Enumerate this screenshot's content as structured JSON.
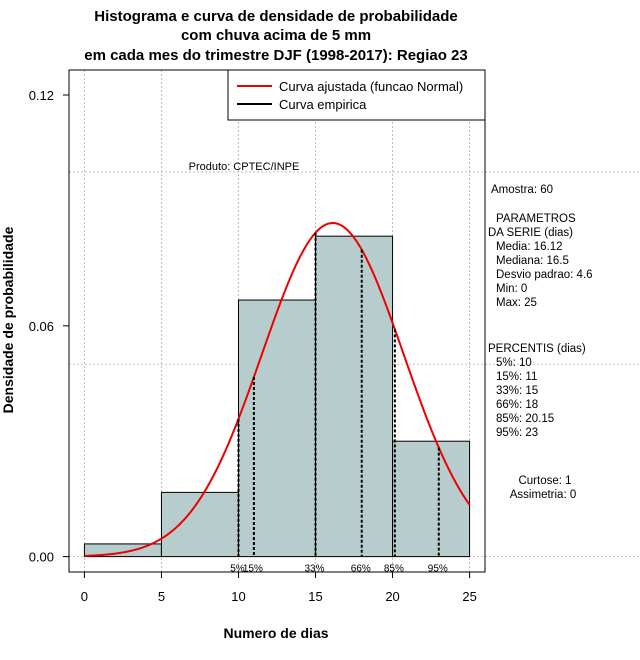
{
  "chart_data": {
    "type": "histogram",
    "title_lines": [
      "Histograma e curva de densidade de probabilidade",
      "com chuva acima de 5 mm",
      "em cada mes do trimestre DJF (1998-2017): Regiao 23"
    ],
    "xlabel": "Numero de dias",
    "ylabel": "Densidade de probabilidade",
    "xlim": [
      -1,
      26
    ],
    "ylim": [
      -0.004,
      0.1265
    ],
    "x_ticks": [
      0,
      5,
      10,
      15,
      20,
      25
    ],
    "x_tick_labels": [
      "0",
      "5",
      "10",
      "15",
      "20",
      "25"
    ],
    "y_ticks": [
      0.0,
      0.06,
      0.12
    ],
    "y_tick_labels": [
      "0.00",
      "0.06",
      "0.12"
    ],
    "grid_y": [
      0.0,
      0.05,
      0.1
    ],
    "grid_x": [
      0,
      5,
      10,
      15,
      20,
      25
    ],
    "bins": [
      {
        "left": 0,
        "right": 5,
        "density": 0.0033
      },
      {
        "left": 5,
        "right": 10,
        "density": 0.0167
      },
      {
        "left": 10,
        "right": 15,
        "density": 0.0667
      },
      {
        "left": 15,
        "right": 20,
        "density": 0.0833
      },
      {
        "left": 20,
        "right": 25,
        "density": 0.03
      }
    ],
    "normal_fit": {
      "mean": 16.12,
      "sd": 4.6,
      "from": 0,
      "to": 25,
      "color": "#ee0000"
    },
    "bar_color": "#b7cdcd",
    "percentile_lines": [
      {
        "x": 10,
        "label": "5%"
      },
      {
        "x": 11,
        "label": "15%"
      },
      {
        "x": 15,
        "label": "33%"
      },
      {
        "x": 18,
        "label": "66%"
      },
      {
        "x": 20.15,
        "label": "85%"
      },
      {
        "x": 23,
        "label": "95%"
      }
    ],
    "legend": [
      {
        "label": "Curva ajustada (funcao Normal)",
        "color": "#ee0000"
      },
      {
        "label": "Curva empirica",
        "color": "#000000"
      }
    ],
    "legend_position": "top-right",
    "product_label": "Produto: CPTEC/INPE"
  },
  "stats_panel": {
    "sample": "Amostra: 60",
    "params_title_1": "PARAMETROS",
    "params_title_2": "DA SERIE (dias)",
    "params": [
      "Media: 16.12",
      "Mediana: 16.5",
      "Desvio padrao: 4.6",
      "Min: 0",
      "Max: 25"
    ],
    "percentis_title": "PERCENTIS (dias)",
    "percentis": [
      "5%: 10",
      "15%: 11",
      "33%: 15",
      "66%: 18",
      "85%: 20.15",
      "95%: 23"
    ],
    "curtose": "Curtose: 1",
    "assimetria": "Assimetria: 0"
  }
}
